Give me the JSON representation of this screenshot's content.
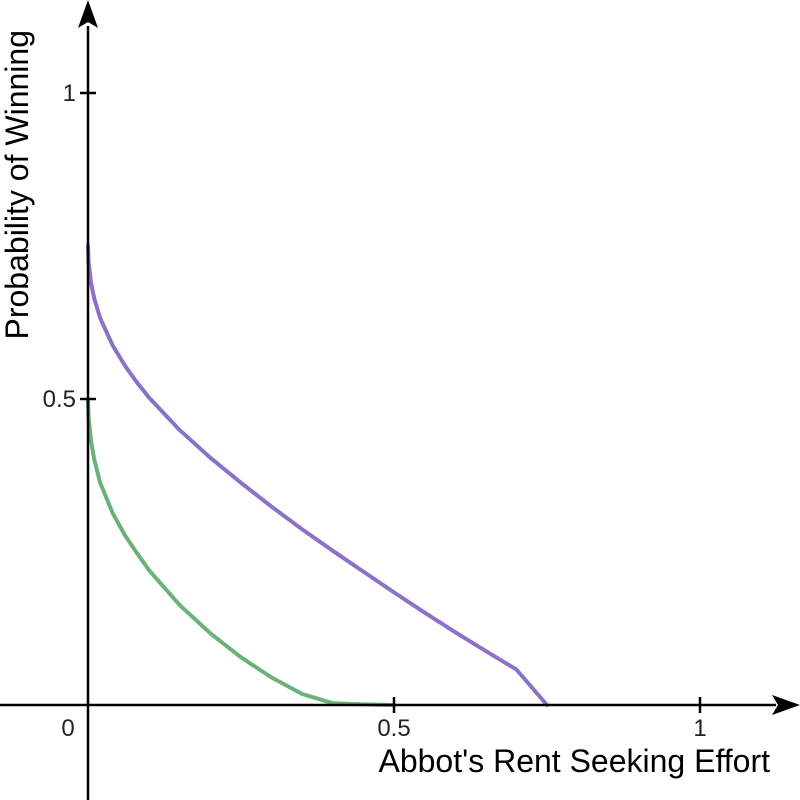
{
  "chart_data": {
    "type": "line",
    "xlabel": "Abbot's Rent Seeking Effort",
    "ylabel": "Probability of Winning",
    "xlim": [
      0,
      1
    ],
    "ylim": [
      0,
      1
    ],
    "grid": false,
    "origin_label": "0",
    "x_ticks": [
      {
        "value": 0.5,
        "label": "0.5"
      },
      {
        "value": 1,
        "label": "1"
      }
    ],
    "y_ticks": [
      {
        "value": 0.5,
        "label": "0.5"
      },
      {
        "value": 1,
        "label": "1"
      }
    ],
    "series": [
      {
        "color": "#8b72c6",
        "x": [
          0,
          0.001,
          0.005,
          0.01,
          0.02,
          0.04,
          0.06,
          0.08,
          0.1,
          0.15,
          0.2,
          0.25,
          0.3,
          0.35,
          0.4,
          0.45,
          0.5,
          0.55,
          0.6,
          0.65,
          0.7,
          0.75
        ],
        "y": [
          0.75,
          0.723,
          0.689,
          0.665,
          0.632,
          0.588,
          0.555,
          0.527,
          0.502,
          0.449,
          0.404,
          0.363,
          0.324,
          0.287,
          0.252,
          0.218,
          0.184,
          0.151,
          0.119,
          0.088,
          0.058,
          0.0
        ]
      },
      {
        "color": "#6bb27a",
        "x": [
          0,
          0.001,
          0.005,
          0.01,
          0.02,
          0.04,
          0.06,
          0.08,
          0.1,
          0.15,
          0.2,
          0.25,
          0.3,
          0.35,
          0.4,
          0.45,
          0.5
        ],
        "y": [
          0.5,
          0.469,
          0.431,
          0.402,
          0.363,
          0.314,
          0.278,
          0.248,
          0.22,
          0.163,
          0.117,
          0.078,
          0.045,
          0.018,
          0.003,
          0.001,
          0.0
        ]
      }
    ]
  }
}
